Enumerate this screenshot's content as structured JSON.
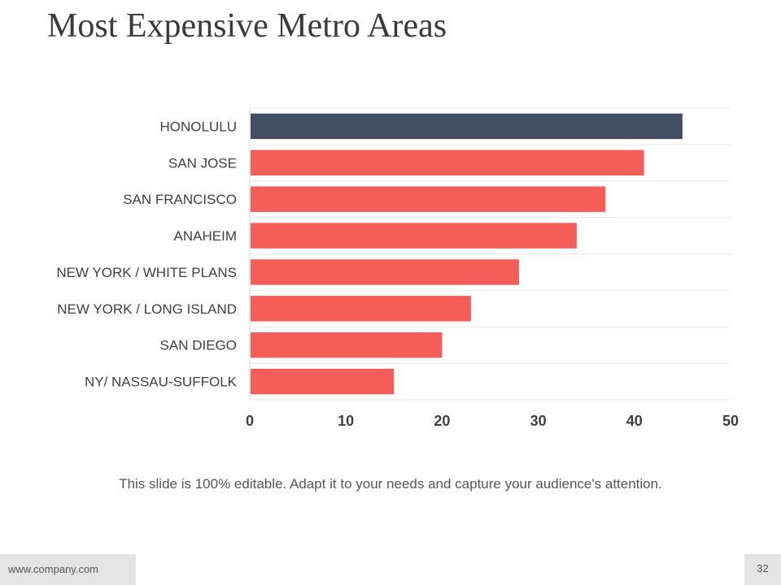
{
  "slide": {
    "title": "Most Expensive Metro Areas",
    "subtitle": "This slide is 100% editable. Adapt it to your needs and capture your audience's attention.",
    "footer_url": "www.company.com",
    "page_number": "32"
  },
  "colors": {
    "highlight": "#414e63",
    "bar": "#f55d58",
    "grid": "#e8e8e8",
    "axis": "#d9d9d9"
  },
  "chart_data": {
    "type": "bar",
    "orientation": "horizontal",
    "title": "",
    "xlabel": "",
    "ylabel": "",
    "categories": [
      "HONOLULU",
      "SAN JOSE",
      "SAN FRANCISCO",
      "ANAHEIM",
      "NEW YORK / WHITE PLANS",
      "NEW YORK / LONG ISLAND",
      "SAN DIEGO",
      "NY/ NASSAU-SUFFOLK"
    ],
    "values": [
      45,
      41,
      37,
      34,
      28,
      23,
      20,
      15
    ],
    "highlight_index": 0,
    "xlim": [
      0,
      50
    ],
    "xticks": [
      0,
      10,
      20,
      30,
      40,
      50
    ],
    "grid": true
  }
}
